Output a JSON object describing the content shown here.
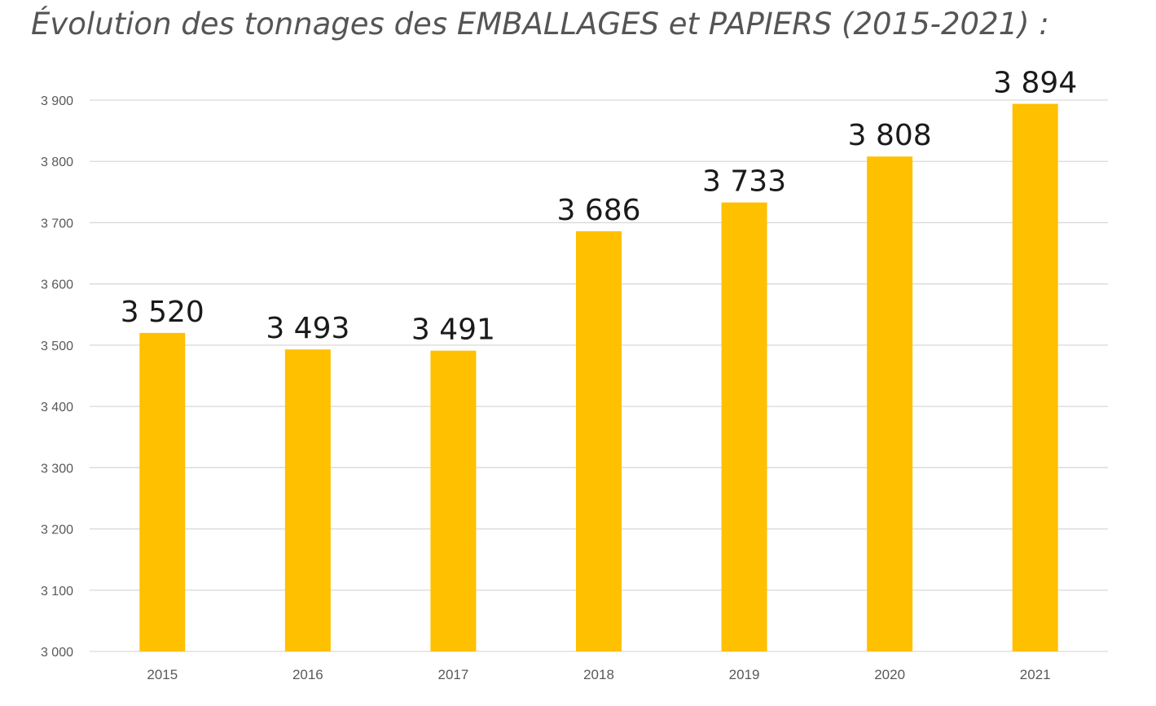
{
  "chart_data": {
    "type": "bar",
    "title": "Évolution des tonnages des EMBALLAGES et PAPIERS (2015-2021) :",
    "categories": [
      "2015",
      "2016",
      "2017",
      "2018",
      "2019",
      "2020",
      "2021"
    ],
    "values": [
      3520,
      3493,
      3491,
      3686,
      3733,
      3808,
      3894
    ],
    "data_labels": [
      "3 520",
      "3 493",
      "3 491",
      "3 686",
      "3 733",
      "3 808",
      "3 894"
    ],
    "ylim": [
      3000,
      3900
    ],
    "yticks": [
      3000,
      3100,
      3200,
      3300,
      3400,
      3500,
      3600,
      3700,
      3800,
      3900
    ],
    "ytick_labels": [
      "3 000",
      "3 100",
      "3 200",
      "3 300",
      "3 400",
      "3 500",
      "3 600",
      "3 700",
      "3 800",
      "3 900"
    ],
    "xlabel": "",
    "ylabel": "",
    "grid": true,
    "legend": "none",
    "bar_color": "#FFC000"
  }
}
